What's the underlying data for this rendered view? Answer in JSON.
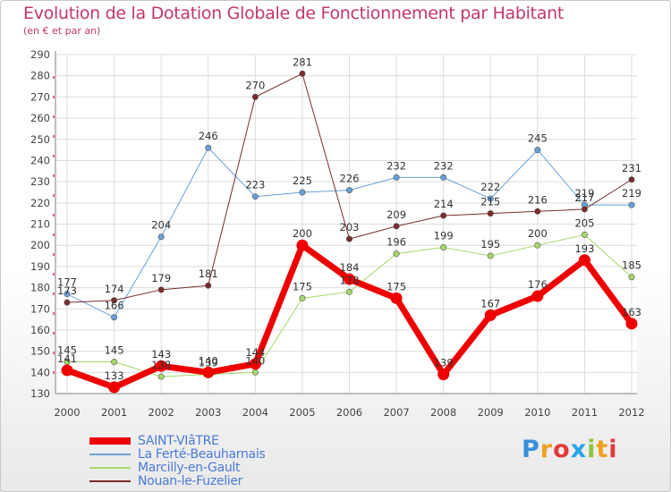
{
  "header": {
    "title": "Evolution de la Dotation Globale de Fonctionnement par Habitant",
    "subtitle": "(en € et par an)"
  },
  "chart_data": {
    "type": "line",
    "title": "Evolution de la Dotation Globale de Fonctionnement par Habitant",
    "subtitle": "(en € et par an)",
    "xlabel": "",
    "ylabel": "",
    "ylim": [
      130,
      290
    ],
    "yticks": [
      130,
      140,
      150,
      160,
      170,
      180,
      190,
      200,
      210,
      220,
      230,
      240,
      250,
      260,
      270,
      280,
      290
    ],
    "grid": true,
    "categories": [
      "2000",
      "2001",
      "2002",
      "2003",
      "2004",
      "2005",
      "2006",
      "2007",
      "2008",
      "2009",
      "2010",
      "2011",
      "2012"
    ],
    "series": [
      {
        "name": "SAINT-VIâTRE",
        "color": "#ee0000",
        "width": 7,
        "values": [
          141,
          133,
          143,
          140,
          144,
          200,
          184,
          175,
          139,
          167,
          176,
          193,
          163
        ]
      },
      {
        "name": "La Ferté-Beauharnais",
        "color": "#6aa0d8",
        "width": 1,
        "values": [
          177,
          166,
          204,
          246,
          223,
          225,
          226,
          232,
          232,
          222,
          245,
          219,
          219
        ]
      },
      {
        "name": "Marcilly-en-Gault",
        "color": "#a6d86a",
        "width": 1,
        "values": [
          145,
          145,
          138,
          139,
          140,
          175,
          178,
          196,
          199,
          195,
          200,
          205,
          185
        ]
      },
      {
        "name": "Nouan-le-Fuzelier",
        "color": "#7a2c2c",
        "width": 1,
        "values": [
          173,
          174,
          179,
          181,
          270,
          281,
          203,
          209,
          214,
          215,
          216,
          217,
          231
        ]
      }
    ]
  },
  "branding": {
    "logo": "Proxiti",
    "colors": [
      "#3a8fd8",
      "#f0a020",
      "#e23a3a",
      "#2aa4e8",
      "#8cc63f",
      "#f0a020",
      "#e23a3a"
    ]
  }
}
